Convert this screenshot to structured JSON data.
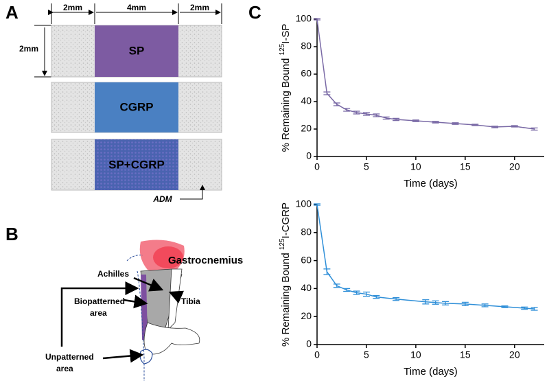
{
  "panel_labels": [
    "A",
    "B",
    "C"
  ],
  "diagram_a": {
    "widths": [
      "2mm",
      "4mm",
      "2mm"
    ],
    "height": "2mm",
    "strips": [
      "SP",
      "CGRP",
      "SP+CGRP"
    ],
    "adm": "ADM"
  },
  "diagram_b": {
    "gastrocnemius": "Gastrocnemius",
    "achilles": "Achilles",
    "biopatterned": [
      "Biopatterned",
      "area"
    ],
    "tibia": "Tibia",
    "unpatterned": [
      "Unpatterned",
      "area"
    ]
  },
  "chart_data": [
    {
      "type": "line",
      "xlabel": "Time (days)",
      "ylabel": [
        "% Remaining Bound ",
        "125",
        "I-SP"
      ],
      "x": [
        0,
        1,
        2,
        3,
        4,
        5,
        6,
        7,
        8,
        10,
        12,
        14,
        16,
        18,
        20,
        22
      ],
      "series": [
        {
          "color": "#7a6aa6",
          "values": [
            100,
            46,
            38,
            34,
            32,
            31,
            30,
            28,
            27,
            26,
            25,
            24,
            23,
            21.5,
            22,
            20
          ],
          "errors": [
            0.5,
            1,
            1,
            1,
            1,
            1,
            1,
            0.8,
            0.8,
            0.6,
            0.6,
            0.6,
            0.5,
            0.6,
            0.5,
            0.8
          ]
        }
      ],
      "xlim": [
        0,
        23
      ],
      "xticks": [
        0,
        5,
        10,
        15,
        20
      ],
      "ylim": [
        0,
        100
      ],
      "yticks": [
        0,
        20,
        40,
        60,
        80,
        100
      ]
    },
    {
      "type": "line",
      "xlabel": "Time (days)",
      "ylabel": [
        "% Remaining Bound ",
        "125",
        "I-CGRP"
      ],
      "x": [
        0,
        1,
        2,
        3,
        4,
        5,
        6,
        8,
        11,
        12,
        13,
        15,
        17,
        19,
        21,
        22
      ],
      "series": [
        {
          "color": "#2f8fd8",
          "values": [
            100,
            52,
            42,
            39,
            37,
            36,
            34,
            32.5,
            30.5,
            30,
            29.5,
            29,
            28,
            27,
            26,
            25.5
          ],
          "errors": [
            0.5,
            2,
            1.2,
            1,
            1.2,
            1.5,
            1,
            1,
            1.5,
            1.2,
            1.2,
            1.2,
            1,
            0.6,
            0.8,
            1
          ]
        }
      ],
      "xlim": [
        0,
        23
      ],
      "xticks": [
        0,
        5,
        10,
        15,
        20
      ],
      "ylim": [
        0,
        100
      ],
      "yticks": [
        0,
        20,
        40,
        60,
        80,
        100
      ]
    }
  ]
}
